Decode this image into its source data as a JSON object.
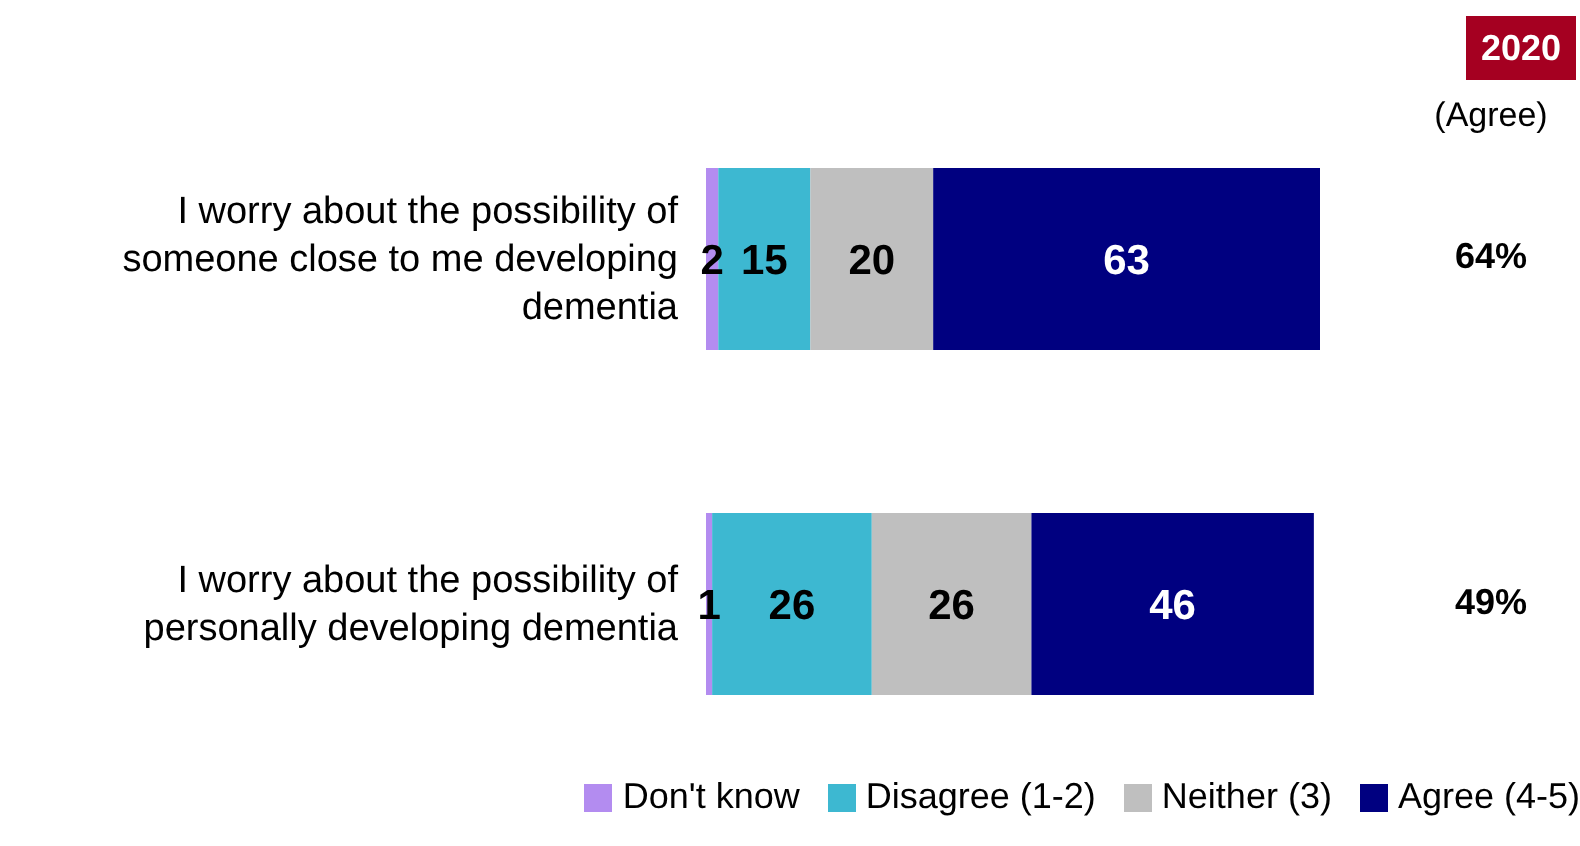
{
  "chart_data": {
    "type": "bar",
    "orientation": "horizontal",
    "stacked": true,
    "categories": [
      "I worry about the possibility of someone close to me developing dementia",
      "I worry about the possibility of personally developing dementia"
    ],
    "series": [
      {
        "name": "Don't know",
        "color": "#b38cf0",
        "values": [
          2,
          1
        ]
      },
      {
        "name": "Disagree (1-2)",
        "color": "#3db8d1",
        "values": [
          15,
          26
        ]
      },
      {
        "name": "Neither (3)",
        "color": "#bfbfbf",
        "values": [
          20,
          26
        ]
      },
      {
        "name": "Agree (4-5)",
        "color": "#000080",
        "values": [
          63,
          46
        ]
      }
    ],
    "xlim": [
      0,
      100
    ],
    "tick_labels": "y",
    "data_labels": true,
    "legend": "bottom right",
    "grid": false,
    "annotations": [
      "2020",
      "(Agree)",
      "64%",
      "49%"
    ]
  }
}
